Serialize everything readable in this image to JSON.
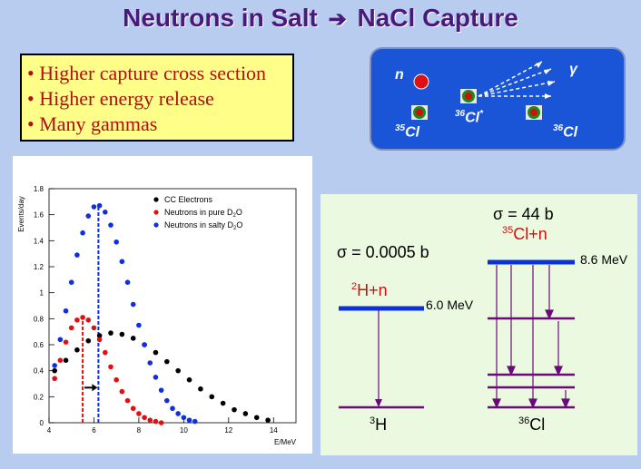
{
  "title": {
    "left": "Neutrons in Salt",
    "arrow": "➔",
    "right": "NaCl Capture"
  },
  "bullets": [
    "• Higher capture cross section",
    "• Higher energy release",
    "• Many gammas"
  ],
  "capture": {
    "neutron": "n",
    "gamma": "γ",
    "cl35": {
      "mass": "35",
      "sym": "Cl"
    },
    "cl36_excited": {
      "mass": "36",
      "sym": "Cl",
      "star": "*"
    },
    "cl36": {
      "mass": "36",
      "sym": "Cl"
    }
  },
  "levels": {
    "sigma_small": "σ = 0.0005 b",
    "h2n_mass": "2",
    "h2n_rest": "H+n",
    "e_h": "6.0 MeV",
    "h3_mass": "3",
    "h3_sym": "H",
    "sigma_big": "σ = 44 b",
    "cl35n_mass": "35",
    "cl35n_rest": "Cl+n",
    "e_cl": "8.6 MeV",
    "cl36_mass": "36",
    "cl36_sym": "Cl"
  },
  "colors": {
    "title": "#4a1a7a",
    "bullet_text": "#b01010",
    "bullet_bg": "#fefe88",
    "capture_bg": "#1a55d8",
    "level_line": "#0a32d8",
    "transition": "#6a0a7a"
  },
  "chart_data": {
    "type": "scatter",
    "xlabel": "E/MeV",
    "ylabel": "Events/day",
    "xlim": [
      4,
      15
    ],
    "ylim": [
      0,
      1.8
    ],
    "xticks": [
      "4",
      "6",
      "8",
      "10",
      "12",
      "14"
    ],
    "yticks": [
      "0",
      "0.2",
      "0.4",
      "0.6",
      "0.8",
      "1",
      "1.2",
      "1.4",
      "1.6",
      "1.8"
    ],
    "legend": [
      {
        "label": "CC Electrons",
        "color": "#000000"
      },
      {
        "label": "Neutrons in pure D",
        "sub": "2",
        "tail": "O",
        "color": "#e01010"
      },
      {
        "label": "Neutrons in salty D",
        "sub": "2",
        "tail": "O",
        "color": "#1030e0"
      }
    ],
    "series": [
      {
        "name": "CC Electrons",
        "color": "#000000",
        "x": [
          4.25,
          4.75,
          5.25,
          5.75,
          6.25,
          6.75,
          7.25,
          7.75,
          8.25,
          8.75,
          9.25,
          9.75,
          10.25,
          10.75,
          11.25,
          11.75,
          12.25,
          12.75,
          13.25,
          13.75
        ],
        "y": [
          0.4,
          0.48,
          0.56,
          0.63,
          0.67,
          0.69,
          0.68,
          0.65,
          0.6,
          0.54,
          0.47,
          0.4,
          0.33,
          0.26,
          0.2,
          0.15,
          0.1,
          0.07,
          0.04,
          0.02
        ]
      },
      {
        "name": "Neutrons in pure D2O",
        "color": "#e01010",
        "x": [
          4.25,
          4.5,
          4.75,
          5.0,
          5.25,
          5.5,
          5.75,
          6.0,
          6.25,
          6.5,
          6.75,
          7.0,
          7.25,
          7.5,
          7.75,
          8.0,
          8.25,
          8.5,
          8.75,
          9.0
        ],
        "y": [
          0.34,
          0.48,
          0.62,
          0.73,
          0.79,
          0.81,
          0.79,
          0.73,
          0.64,
          0.54,
          0.43,
          0.33,
          0.24,
          0.17,
          0.11,
          0.07,
          0.04,
          0.02,
          0.01,
          0.0
        ]
      },
      {
        "name": "Neutrons in salty D2O",
        "color": "#1030e0",
        "x": [
          4.25,
          4.5,
          4.75,
          5.0,
          5.25,
          5.5,
          5.75,
          6.0,
          6.25,
          6.5,
          6.75,
          7.0,
          7.25,
          7.5,
          7.75,
          8.0,
          8.25,
          8.5,
          8.75,
          9.0,
          9.25,
          9.5,
          9.75,
          10.0,
          10.25,
          10.5
        ],
        "y": [
          0.44,
          0.64,
          0.86,
          1.08,
          1.29,
          1.46,
          1.59,
          1.66,
          1.67,
          1.62,
          1.52,
          1.39,
          1.24,
          1.08,
          0.91,
          0.75,
          0.6,
          0.46,
          0.35,
          0.25,
          0.17,
          0.11,
          0.07,
          0.04,
          0.02,
          0.01
        ]
      }
    ],
    "markers": [
      {
        "x": 5.5,
        "color": "#e01010"
      },
      {
        "x": 6.2,
        "color": "#1030e0"
      }
    ]
  }
}
